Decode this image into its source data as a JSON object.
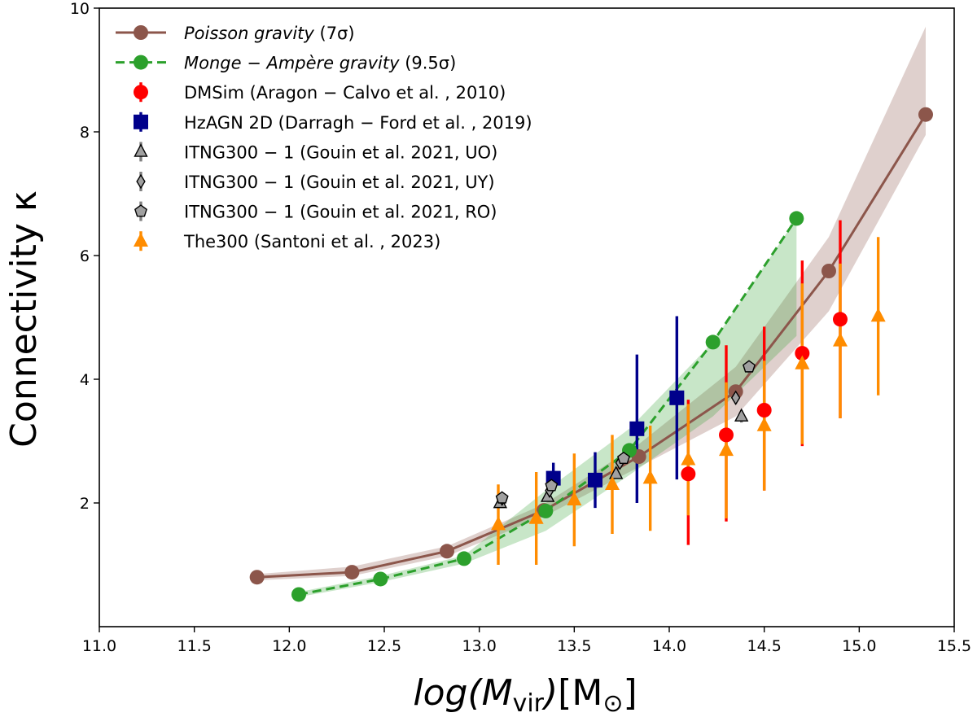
{
  "chart_data": {
    "type": "scatter",
    "xlabel": "log(Mvir)[M⊙]",
    "ylabel": "Connectivity κ",
    "xlim": [
      11.0,
      15.5
    ],
    "ylim": [
      0.0,
      10.0
    ],
    "xticks": [
      "11.0",
      "11.5",
      "12.0",
      "12.5",
      "13.0",
      "13.5",
      "14.0",
      "14.5",
      "15.0",
      "15.5"
    ],
    "yticks": [
      "2",
      "4",
      "6",
      "8",
      "10"
    ],
    "ytick_values": [
      2,
      4,
      6,
      8,
      10
    ],
    "grid": false,
    "legend_position": "top-left",
    "series": [
      {
        "name": "Poisson gravity (7σ)",
        "legend_main": "Poisson gravity",
        "legend_suffix": "(7σ)",
        "kind": "line-marker",
        "color": "#8c564b",
        "band_color": "#8c564b",
        "x": [
          11.83,
          12.33,
          12.83,
          13.34,
          13.84,
          14.35,
          14.84,
          15.35
        ],
        "y": [
          0.8,
          0.88,
          1.22,
          1.88,
          2.75,
          3.8,
          5.75,
          8.28
        ],
        "band_low": [
          0.75,
          0.82,
          1.14,
          1.78,
          2.58,
          3.4,
          5.1,
          7.95
        ],
        "band_high": [
          0.85,
          0.97,
          1.3,
          1.98,
          2.95,
          4.2,
          6.3,
          9.7
        ]
      },
      {
        "name": "Monge − Ampère gravity (9.5σ)",
        "legend_main": "Monge − Ampère gravity",
        "legend_suffix": "(9.5σ)",
        "kind": "dashed-marker",
        "color": "#2ca02c",
        "band_color": "#2ca02c",
        "x": [
          12.05,
          12.48,
          12.92,
          13.35,
          13.79,
          14.23,
          14.67
        ],
        "y": [
          0.52,
          0.77,
          1.1,
          1.87,
          2.85,
          4.6,
          6.6
        ],
        "band_low": [
          0.48,
          0.72,
          1.02,
          1.55,
          2.45,
          3.4,
          4.7
        ],
        "band_high": [
          0.56,
          0.82,
          1.15,
          2.2,
          3.2,
          4.6,
          6.6
        ]
      },
      {
        "name": "DMSim (Aragon − Calvo et al. , 2010)",
        "kind": "errorbar",
        "marker": "circle",
        "color": "#ff0000",
        "x": [
          14.1,
          14.3,
          14.5,
          14.7,
          14.9
        ],
        "y": [
          2.47,
          3.1,
          3.5,
          4.42,
          4.97
        ],
        "err_low": [
          1.15,
          1.4,
          1.3,
          1.5,
          1.6
        ],
        "err_high": [
          1.2,
          1.45,
          1.35,
          1.5,
          1.6
        ]
      },
      {
        "name": "HzAGN 2D (Darragh − Ford et al. , 2019)",
        "kind": "errorbar",
        "marker": "square",
        "color": "#00008b",
        "x": [
          13.39,
          13.61,
          13.83,
          14.04
        ],
        "y": [
          2.4,
          2.37,
          3.2,
          3.7
        ],
        "err_low": [
          0.2,
          0.45,
          1.2,
          1.32
        ],
        "err_high": [
          0.25,
          0.45,
          1.2,
          1.32
        ]
      },
      {
        "name": "ITNG300 − 1 (Gouin et al.  2021,  UO)",
        "kind": "errorbar",
        "marker": "triangle",
        "color": "#a0a0a0",
        "x": [
          13.11,
          13.36,
          13.72,
          14.38
        ],
        "y": [
          2.0,
          2.1,
          2.47,
          3.4
        ],
        "err_low": [
          0.05,
          0.05,
          0.05,
          0.1
        ],
        "err_high": [
          0.05,
          0.05,
          0.05,
          0.1
        ]
      },
      {
        "name": "ITNG300 − 1 (Gouin et al.  2021,  UY)",
        "kind": "errorbar",
        "marker": "diamond",
        "color": "#a0a0a0",
        "x": [
          13.12,
          13.37,
          13.74,
          14.35
        ],
        "y": [
          2.07,
          2.2,
          2.65,
          3.7
        ],
        "err_low": [
          0.05,
          0.05,
          0.05,
          0.1
        ],
        "err_high": [
          0.05,
          0.05,
          0.05,
          0.1
        ]
      },
      {
        "name": "ITNG300 − 1 (Gouin et al.  2021,  RO)",
        "kind": "errorbar",
        "marker": "pentagon",
        "color": "#a0a0a0",
        "x": [
          13.12,
          13.38,
          13.76,
          14.42
        ],
        "y": [
          2.08,
          2.28,
          2.72,
          4.2
        ],
        "err_low": [
          0.05,
          0.05,
          0.05,
          0.1
        ],
        "err_high": [
          0.05,
          0.05,
          0.05,
          0.1
        ]
      },
      {
        "name": "The300 (Santoni et al. , 2023)",
        "kind": "errorbar",
        "marker": "triangle",
        "color": "#ff8c00",
        "x": [
          13.1,
          13.3,
          13.5,
          13.7,
          13.9,
          14.1,
          14.3,
          14.5,
          14.7,
          14.9,
          15.1
        ],
        "y": [
          1.65,
          1.75,
          2.05,
          2.3,
          2.4,
          2.7,
          2.85,
          3.25,
          4.25,
          4.62,
          5.02
        ],
        "err_low": [
          0.65,
          0.75,
          0.75,
          0.8,
          0.85,
          0.9,
          1.1,
          1.05,
          1.3,
          1.25,
          1.28
        ],
        "err_high": [
          0.65,
          0.75,
          0.75,
          0.8,
          0.85,
          0.9,
          1.1,
          1.05,
          1.3,
          1.25,
          1.28
        ]
      }
    ]
  }
}
